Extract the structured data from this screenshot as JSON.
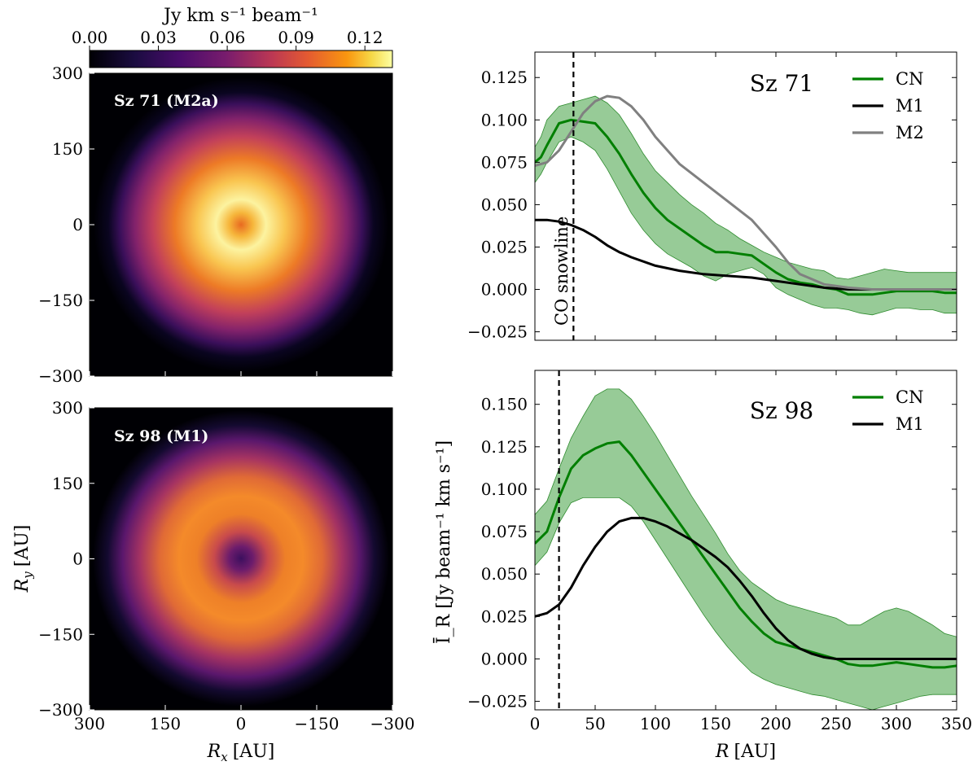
{
  "colorbar": {
    "label": "Jy km s⁻¹ beam⁻¹",
    "ticks": [
      "0.00",
      "0.03",
      "0.06",
      "0.09",
      "0.12"
    ],
    "tick_values": [
      0.0,
      0.03,
      0.06,
      0.09,
      0.12
    ],
    "range": [
      0.0,
      0.132
    ]
  },
  "image_panels": {
    "xlabel_main": "R",
    "xlabel_sub": "x",
    "xlabel_unit": "[AU]",
    "ylabel_main": "R",
    "ylabel_sub": "y",
    "ylabel_unit": "[AU]",
    "x_ticks": [
      "300",
      "150",
      "0",
      "−150",
      "−300"
    ],
    "x_tick_values": [
      300,
      150,
      0,
      -150,
      -300
    ],
    "y_ticks": [
      "300",
      "150",
      "0",
      "−150",
      "−300"
    ],
    "y_tick_values": [
      300,
      150,
      0,
      -150,
      -300
    ],
    "top": {
      "label": "Sz 71 (M2a)"
    },
    "bottom": {
      "label": "Sz 98 (M1)"
    }
  },
  "chart_data": [
    {
      "type": "line",
      "title": "Sz 71",
      "xlabel": "",
      "ylabel": "",
      "xlim": [
        0,
        350
      ],
      "ylim": [
        -0.03,
        0.14
      ],
      "y_ticks": [
        "−0.025",
        "0.000",
        "0.025",
        "0.050",
        "0.075",
        "0.100",
        "0.125"
      ],
      "y_tick_values": [
        -0.025,
        0.0,
        0.025,
        0.05,
        0.075,
        0.1,
        0.125
      ],
      "x_tick_values": [
        0,
        50,
        100,
        150,
        200,
        250,
        300,
        350
      ],
      "snowline": {
        "x": 32,
        "label": "CO snowline"
      },
      "legend": [
        "CN",
        "M1",
        "M2"
      ],
      "series": [
        {
          "name": "CN",
          "color": "#007f00",
          "x": [
            0,
            5,
            10,
            20,
            30,
            40,
            50,
            60,
            70,
            80,
            90,
            100,
            110,
            120,
            130,
            140,
            150,
            160,
            170,
            180,
            190,
            200,
            210,
            220,
            230,
            240,
            250,
            260,
            270,
            280,
            290,
            300,
            310,
            320,
            330,
            340,
            350
          ],
          "y": [
            0.075,
            0.078,
            0.085,
            0.098,
            0.1,
            0.099,
            0.098,
            0.09,
            0.08,
            0.068,
            0.057,
            0.048,
            0.041,
            0.036,
            0.031,
            0.026,
            0.022,
            0.022,
            0.021,
            0.02,
            0.015,
            0.01,
            0.006,
            0.004,
            0.003,
            0.001,
            0.0,
            -0.003,
            -0.003,
            -0.003,
            -0.002,
            -0.001,
            -0.001,
            -0.001,
            -0.001,
            -0.002,
            -0.002
          ],
          "band_upper": [
            0.084,
            0.09,
            0.1,
            0.108,
            0.11,
            0.112,
            0.114,
            0.11,
            0.103,
            0.092,
            0.08,
            0.07,
            0.063,
            0.056,
            0.05,
            0.045,
            0.039,
            0.035,
            0.03,
            0.026,
            0.022,
            0.019,
            0.016,
            0.014,
            0.012,
            0.011,
            0.007,
            0.006,
            0.008,
            0.01,
            0.012,
            0.011,
            0.01,
            0.01,
            0.01,
            0.01,
            0.01
          ],
          "band_lower": [
            0.063,
            0.068,
            0.075,
            0.087,
            0.09,
            0.087,
            0.082,
            0.071,
            0.058,
            0.045,
            0.035,
            0.027,
            0.021,
            0.017,
            0.013,
            0.008,
            0.005,
            0.009,
            0.011,
            0.013,
            0.009,
            0.001,
            -0.003,
            -0.006,
            -0.009,
            -0.011,
            -0.011,
            -0.012,
            -0.014,
            -0.015,
            -0.013,
            -0.011,
            -0.011,
            -0.012,
            -0.012,
            -0.014,
            -0.014
          ]
        },
        {
          "name": "M1",
          "color": "#000000",
          "x": [
            0,
            10,
            20,
            30,
            40,
            50,
            60,
            70,
            80,
            100,
            120,
            140,
            160,
            180,
            200,
            220,
            240,
            260,
            280,
            300,
            320,
            350
          ],
          "y": [
            0.041,
            0.041,
            0.04,
            0.038,
            0.035,
            0.031,
            0.026,
            0.022,
            0.019,
            0.014,
            0.011,
            0.009,
            0.008,
            0.007,
            0.005,
            0.003,
            0.001,
            0.0,
            0.0,
            0.0,
            0.0,
            0.0
          ]
        },
        {
          "name": "M2",
          "color": "#808080",
          "x": [
            0,
            10,
            20,
            30,
            40,
            50,
            60,
            70,
            80,
            90,
            100,
            120,
            140,
            160,
            180,
            200,
            210,
            220,
            240,
            260,
            280,
            300,
            320,
            350
          ],
          "y": [
            0.073,
            0.075,
            0.082,
            0.093,
            0.104,
            0.111,
            0.114,
            0.113,
            0.108,
            0.1,
            0.09,
            0.074,
            0.063,
            0.052,
            0.041,
            0.025,
            0.016,
            0.009,
            0.003,
            0.001,
            0.0,
            0.0,
            0.0,
            0.0
          ]
        }
      ]
    },
    {
      "type": "line",
      "title": "Sz 98",
      "xlabel": "R [AU]",
      "ylabel": "Ī_R [Jy beam⁻¹ km s⁻¹]",
      "xlim": [
        0,
        350
      ],
      "ylim": [
        -0.03,
        0.17
      ],
      "y_ticks": [
        "−0.025",
        "0.000",
        "0.025",
        "0.050",
        "0.075",
        "0.100",
        "0.125",
        "0.150"
      ],
      "y_tick_values": [
        -0.025,
        0.0,
        0.025,
        0.05,
        0.075,
        0.1,
        0.125,
        0.15
      ],
      "x_ticks": [
        "0",
        "50",
        "100",
        "150",
        "200",
        "250",
        "300",
        "350"
      ],
      "x_tick_values": [
        0,
        50,
        100,
        150,
        200,
        250,
        300,
        350
      ],
      "snowline": {
        "x": 20
      },
      "legend": [
        "CN",
        "M1"
      ],
      "series": [
        {
          "name": "CN",
          "color": "#007f00",
          "x": [
            0,
            10,
            20,
            30,
            40,
            50,
            60,
            70,
            80,
            90,
            100,
            110,
            120,
            130,
            140,
            150,
            160,
            170,
            180,
            190,
            200,
            210,
            220,
            230,
            240,
            250,
            260,
            270,
            280,
            290,
            300,
            310,
            320,
            330,
            340,
            350
          ],
          "y": [
            0.068,
            0.075,
            0.095,
            0.112,
            0.12,
            0.124,
            0.127,
            0.128,
            0.12,
            0.11,
            0.1,
            0.09,
            0.08,
            0.07,
            0.06,
            0.05,
            0.04,
            0.03,
            0.022,
            0.015,
            0.01,
            0.008,
            0.006,
            0.004,
            0.002,
            0.0,
            -0.003,
            -0.004,
            -0.004,
            -0.003,
            -0.002,
            -0.003,
            -0.004,
            -0.005,
            -0.005,
            -0.004
          ],
          "band_upper": [
            0.085,
            0.093,
            0.112,
            0.13,
            0.143,
            0.155,
            0.159,
            0.159,
            0.153,
            0.143,
            0.132,
            0.12,
            0.108,
            0.096,
            0.085,
            0.074,
            0.062,
            0.052,
            0.045,
            0.04,
            0.035,
            0.032,
            0.03,
            0.028,
            0.026,
            0.024,
            0.02,
            0.02,
            0.024,
            0.028,
            0.03,
            0.028,
            0.024,
            0.02,
            0.015,
            0.013
          ],
          "band_lower": [
            0.055,
            0.063,
            0.08,
            0.092,
            0.095,
            0.095,
            0.095,
            0.095,
            0.09,
            0.081,
            0.07,
            0.059,
            0.048,
            0.037,
            0.026,
            0.016,
            0.007,
            -0.001,
            -0.008,
            -0.012,
            -0.015,
            -0.017,
            -0.019,
            -0.021,
            -0.022,
            -0.024,
            -0.026,
            -0.028,
            -0.03,
            -0.028,
            -0.026,
            -0.024,
            -0.022,
            -0.021,
            -0.021,
            -0.021
          ]
        },
        {
          "name": "M1",
          "color": "#000000",
          "x": [
            0,
            10,
            20,
            30,
            40,
            50,
            60,
            70,
            80,
            90,
            100,
            110,
            120,
            130,
            140,
            150,
            160,
            170,
            180,
            190,
            200,
            210,
            220,
            230,
            240,
            250,
            260,
            270,
            280,
            300,
            320,
            350
          ],
          "y": [
            0.025,
            0.027,
            0.032,
            0.042,
            0.055,
            0.066,
            0.075,
            0.081,
            0.083,
            0.083,
            0.081,
            0.078,
            0.074,
            0.07,
            0.065,
            0.06,
            0.054,
            0.046,
            0.037,
            0.027,
            0.018,
            0.011,
            0.006,
            0.003,
            0.001,
            0.0,
            0.0,
            0.0,
            0.0,
            0.0,
            0.0,
            0.0
          ]
        }
      ]
    }
  ]
}
